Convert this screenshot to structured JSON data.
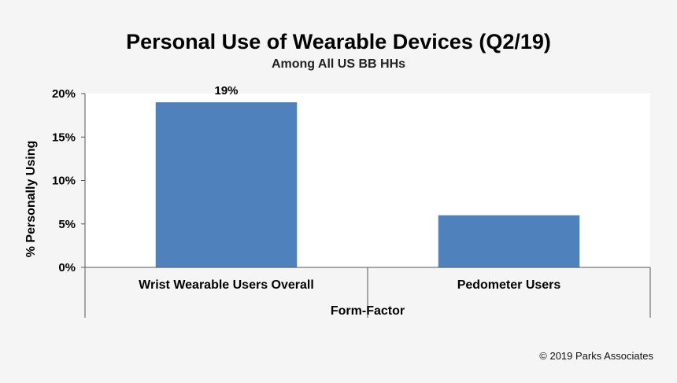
{
  "chart_data": {
    "type": "bar",
    "title": "Personal Use of Wearable Devices (Q2/19)",
    "subtitle": "Among All US BB HHs",
    "xlabel": "Form-Factor",
    "ylabel": "% Personally Using",
    "categories": [
      "Wrist Wearable Users Overall",
      "Pedometer Users"
    ],
    "values": [
      19,
      6
    ],
    "data_labels": [
      "19%",
      ""
    ],
    "ylim": [
      0,
      20
    ],
    "yticks": [
      0,
      5,
      10,
      15,
      20
    ],
    "ytick_labels": [
      "0%",
      "5%",
      "10%",
      "15%",
      "20%"
    ],
    "bar_color": "#4f81bd",
    "grid": false,
    "legend": "none"
  },
  "footer": {
    "copyright": "© 2019 Parks Associates"
  }
}
